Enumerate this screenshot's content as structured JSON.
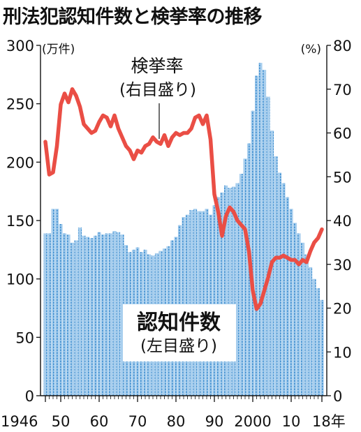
{
  "chart_data": {
    "type": "bar",
    "title": "刑法犯認知件数と検挙率の推移",
    "y_left": {
      "unit": "(万件)",
      "ylim": [
        0,
        300
      ],
      "ticks": [
        0,
        50,
        100,
        150,
        200,
        250,
        300
      ]
    },
    "y_right": {
      "unit": "(%)",
      "ylim": [
        0,
        80
      ],
      "ticks": [
        0,
        10,
        20,
        30,
        40,
        50,
        60,
        70,
        80
      ]
    },
    "x_ticks": [
      {
        "year": 1946,
        "label": "1946"
      },
      {
        "year": 1950,
        "label": "50"
      },
      {
        "year": 1960,
        "label": "60"
      },
      {
        "year": 1970,
        "label": "70"
      },
      {
        "year": 1980,
        "label": "80"
      },
      {
        "year": 1990,
        "label": "90"
      },
      {
        "year": 2000,
        "label": "2000"
      },
      {
        "year": 2010,
        "label": "10"
      },
      {
        "year": 2018,
        "label": "18年"
      }
    ],
    "series": [
      {
        "name": "認知件数",
        "sublabel": "(左目盛り)",
        "kind": "bar",
        "axis": "left",
        "color": "#3f8fd0",
        "x": [
          1946,
          1947,
          1948,
          1949,
          1950,
          1951,
          1952,
          1953,
          1954,
          1955,
          1956,
          1957,
          1958,
          1959,
          1960,
          1961,
          1962,
          1963,
          1964,
          1965,
          1966,
          1967,
          1968,
          1969,
          1970,
          1971,
          1972,
          1973,
          1974,
          1975,
          1976,
          1977,
          1978,
          1979,
          1980,
          1981,
          1982,
          1983,
          1984,
          1985,
          1986,
          1987,
          1988,
          1989,
          1990,
          1991,
          1992,
          1993,
          1994,
          1995,
          1996,
          1997,
          1998,
          1999,
          2000,
          2001,
          2002,
          2003,
          2004,
          2005,
          2006,
          2007,
          2008,
          2009,
          2010,
          2011,
          2012,
          2013,
          2014,
          2015,
          2016,
          2017,
          2018
        ],
        "values": [
          139,
          139,
          160,
          160,
          147,
          139,
          138,
          131,
          133,
          144,
          137,
          136,
          135,
          137,
          140,
          138,
          139,
          139,
          141,
          140,
          138,
          129,
          123,
          125,
          127,
          123,
          125,
          121,
          120,
          122,
          124,
          126,
          128,
          133,
          136,
          146,
          153,
          155,
          159,
          160,
          158,
          158,
          160,
          155,
          163,
          170,
          174,
          180,
          178,
          179,
          182,
          190,
          203,
          216,
          244,
          274,
          285,
          279,
          256,
          227,
          205,
          191,
          182,
          170,
          160,
          148,
          139,
          131,
          121,
          110,
          100,
          92,
          82
        ]
      },
      {
        "name": "検挙率",
        "sublabel": "(右目盛り)",
        "kind": "line",
        "axis": "right",
        "color": "#ea4e45",
        "x": [
          1946,
          1947,
          1948,
          1949,
          1950,
          1951,
          1952,
          1953,
          1954,
          1955,
          1956,
          1957,
          1958,
          1959,
          1960,
          1961,
          1962,
          1963,
          1964,
          1965,
          1966,
          1967,
          1968,
          1969,
          1970,
          1971,
          1972,
          1973,
          1974,
          1975,
          1976,
          1977,
          1978,
          1979,
          1980,
          1981,
          1982,
          1983,
          1984,
          1985,
          1986,
          1987,
          1988,
          1989,
          1990,
          1991,
          1992,
          1993,
          1994,
          1995,
          1996,
          1997,
          1998,
          1999,
          2000,
          2001,
          2002,
          2003,
          2004,
          2005,
          2006,
          2007,
          2008,
          2009,
          2010,
          2011,
          2012,
          2013,
          2014,
          2015,
          2016,
          2017,
          2018
        ],
        "values": [
          58,
          50.5,
          51,
          57,
          66.5,
          69,
          67,
          70,
          68.5,
          66,
          62,
          61,
          60,
          60.5,
          62.5,
          64,
          63.5,
          61.5,
          64,
          61,
          59,
          57,
          56,
          54,
          56,
          55.5,
          57,
          57.5,
          59,
          58,
          57.5,
          59.5,
          57,
          59,
          60,
          59.5,
          60,
          60,
          61,
          63.5,
          64,
          62,
          64,
          58.5,
          46,
          42,
          36.5,
          41,
          43,
          42,
          40,
          39,
          38,
          33,
          24,
          19.8,
          21,
          24,
          27,
          30.5,
          31.5,
          31.5,
          32,
          31.5,
          31,
          31,
          30,
          31,
          30.5,
          33,
          35,
          36,
          38
        ]
      }
    ]
  }
}
